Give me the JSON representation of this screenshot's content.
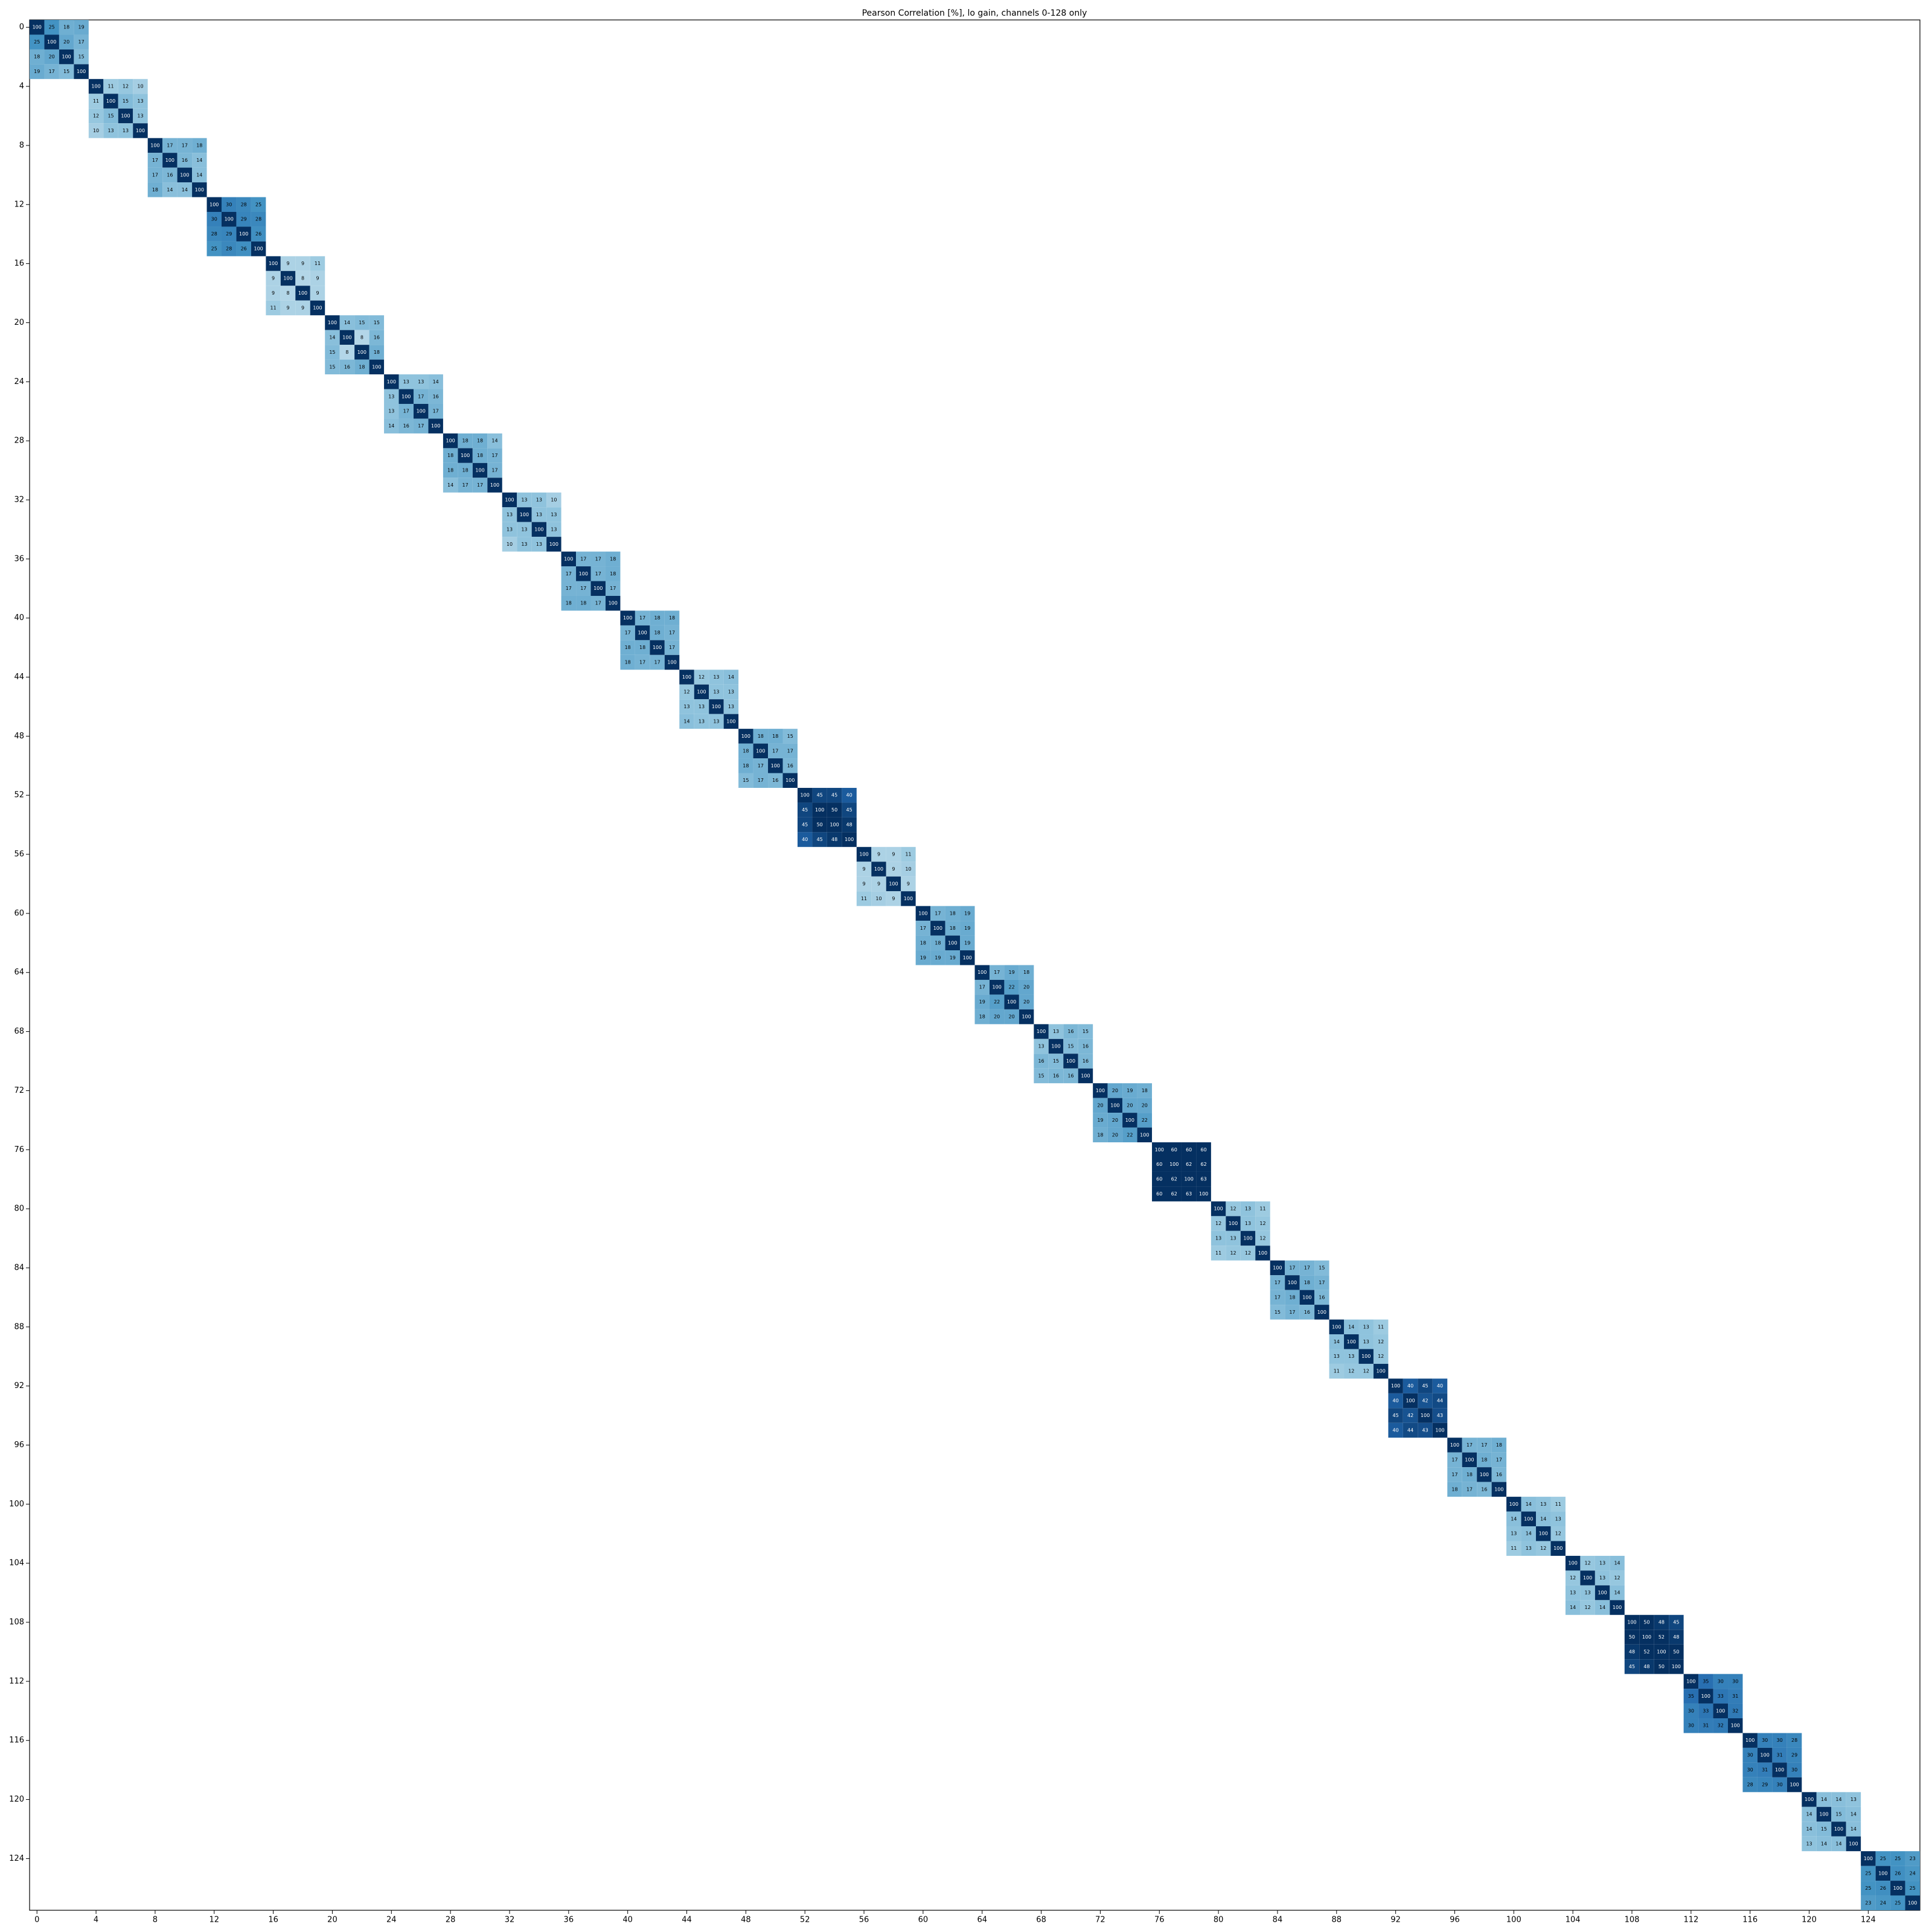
{
  "chart_data": {
    "type": "heatmap",
    "title": "Pearson Correlation [%], lo gain, channels 0-128 only",
    "xlim": [
      -0.5,
      127.5
    ],
    "ylim": [
      127.5,
      -0.5
    ],
    "xticks": [
      0,
      4,
      8,
      12,
      16,
      20,
      24,
      28,
      32,
      36,
      40,
      44,
      48,
      52,
      56,
      60,
      64,
      68,
      72,
      76,
      80,
      84,
      88,
      92,
      96,
      100,
      104,
      108,
      112,
      116,
      120,
      124
    ],
    "yticks": [
      0,
      4,
      8,
      12,
      16,
      20,
      24,
      28,
      32,
      36,
      40,
      44,
      48,
      52,
      56,
      60,
      64,
      68,
      72,
      76,
      80,
      84,
      88,
      92,
      96,
      100,
      104,
      108,
      112,
      116,
      120,
      124
    ],
    "zlim": [
      -50,
      50
    ],
    "grid": false,
    "blocks": [
      {
        "start": 0,
        "values": [
          [
            100,
            25,
            18,
            19
          ],
          [
            25,
            100,
            20,
            17
          ],
          [
            18,
            20,
            100,
            15
          ],
          [
            19,
            17,
            15,
            100
          ]
        ]
      },
      {
        "start": 4,
        "values": [
          [
            100,
            11,
            12,
            10
          ],
          [
            11,
            100,
            15,
            13
          ],
          [
            12,
            15,
            100,
            13
          ],
          [
            10,
            13,
            13,
            100
          ]
        ]
      },
      {
        "start": 8,
        "values": [
          [
            100,
            17,
            17,
            18
          ],
          [
            17,
            100,
            16,
            14
          ],
          [
            17,
            16,
            100,
            14
          ],
          [
            18,
            14,
            14,
            100
          ]
        ]
      },
      {
        "start": 12,
        "values": [
          [
            100,
            30,
            28,
            25
          ],
          [
            30,
            100,
            29,
            28
          ],
          [
            28,
            29,
            100,
            26
          ],
          [
            25,
            28,
            26,
            100
          ]
        ]
      },
      {
        "start": 16,
        "values": [
          [
            100,
            9,
            9,
            11
          ],
          [
            9,
            100,
            8,
            9
          ],
          [
            9,
            8,
            100,
            9
          ],
          [
            11,
            9,
            9,
            100
          ]
        ]
      },
      {
        "start": 20,
        "values": [
          [
            100,
            14,
            15,
            15
          ],
          [
            14,
            100,
            8,
            16
          ],
          [
            15,
            8,
            100,
            18
          ],
          [
            15,
            16,
            18,
            100
          ]
        ]
      },
      {
        "start": 24,
        "values": [
          [
            100,
            13,
            13,
            14
          ],
          [
            13,
            100,
            17,
            16
          ],
          [
            13,
            17,
            100,
            17
          ],
          [
            14,
            16,
            17,
            100
          ]
        ]
      },
      {
        "start": 28,
        "values": [
          [
            100,
            18,
            18,
            14
          ],
          [
            18,
            100,
            18,
            17
          ],
          [
            18,
            18,
            100,
            17
          ],
          [
            14,
            17,
            17,
            100
          ]
        ]
      },
      {
        "start": 32,
        "values": [
          [
            100,
            13,
            13,
            10
          ],
          [
            13,
            100,
            13,
            13
          ],
          [
            13,
            13,
            100,
            13
          ],
          [
            10,
            13,
            13,
            100
          ]
        ]
      },
      {
        "start": 36,
        "values": [
          [
            100,
            17,
            17,
            18
          ],
          [
            17,
            100,
            17,
            18
          ],
          [
            17,
            17,
            100,
            17
          ],
          [
            18,
            18,
            17,
            100
          ]
        ]
      },
      {
        "start": 40,
        "values": [
          [
            100,
            17,
            18,
            18
          ],
          [
            17,
            100,
            18,
            17
          ],
          [
            18,
            18,
            100,
            17
          ],
          [
            18,
            17,
            17,
            100
          ]
        ]
      },
      {
        "start": 44,
        "values": [
          [
            100,
            12,
            13,
            14
          ],
          [
            12,
            100,
            13,
            13
          ],
          [
            13,
            13,
            100,
            13
          ],
          [
            14,
            13,
            13,
            100
          ]
        ]
      },
      {
        "start": 48,
        "values": [
          [
            100,
            18,
            18,
            15
          ],
          [
            18,
            100,
            17,
            17
          ],
          [
            18,
            17,
            100,
            16
          ],
          [
            15,
            17,
            16,
            100
          ]
        ]
      },
      {
        "start": 52,
        "values": [
          [
            100,
            45,
            45,
            40
          ],
          [
            45,
            100,
            50,
            45
          ],
          [
            45,
            50,
            100,
            48
          ],
          [
            40,
            45,
            48,
            100
          ]
        ]
      },
      {
        "start": 56,
        "values": [
          [
            100,
            9,
            9,
            11
          ],
          [
            9,
            100,
            9,
            10
          ],
          [
            9,
            9,
            100,
            9
          ],
          [
            11,
            10,
            9,
            100
          ]
        ]
      },
      {
        "start": 60,
        "values": [
          [
            100,
            17,
            18,
            19
          ],
          [
            17,
            100,
            18,
            19
          ],
          [
            18,
            18,
            100,
            19
          ],
          [
            19,
            19,
            19,
            100
          ]
        ]
      },
      {
        "start": 64,
        "values": [
          [
            100,
            17,
            19,
            18
          ],
          [
            17,
            100,
            22,
            20
          ],
          [
            19,
            22,
            100,
            20
          ],
          [
            18,
            20,
            20,
            100
          ]
        ]
      },
      {
        "start": 68,
        "values": [
          [
            100,
            13,
            16,
            15
          ],
          [
            13,
            100,
            15,
            16
          ],
          [
            16,
            15,
            100,
            16
          ],
          [
            15,
            16,
            16,
            100
          ]
        ]
      },
      {
        "start": 72,
        "values": [
          [
            100,
            20,
            19,
            18
          ],
          [
            20,
            100,
            20,
            20
          ],
          [
            19,
            20,
            100,
            22
          ],
          [
            18,
            20,
            22,
            100
          ]
        ]
      },
      {
        "start": 76,
        "values": [
          [
            100,
            60,
            60,
            60
          ],
          [
            60,
            100,
            62,
            62
          ],
          [
            60,
            62,
            100,
            63
          ],
          [
            60,
            62,
            63,
            100
          ]
        ]
      },
      {
        "start": 80,
        "values": [
          [
            100,
            12,
            13,
            11
          ],
          [
            12,
            100,
            13,
            12
          ],
          [
            13,
            13,
            100,
            12
          ],
          [
            11,
            12,
            12,
            100
          ]
        ]
      },
      {
        "start": 84,
        "values": [
          [
            100,
            17,
            17,
            15
          ],
          [
            17,
            100,
            18,
            17
          ],
          [
            17,
            18,
            100,
            16
          ],
          [
            15,
            17,
            16,
            100
          ]
        ]
      },
      {
        "start": 88,
        "values": [
          [
            100,
            14,
            13,
            11
          ],
          [
            14,
            100,
            13,
            12
          ],
          [
            13,
            13,
            100,
            12
          ],
          [
            11,
            12,
            12,
            100
          ]
        ]
      },
      {
        "start": 92,
        "values": [
          [
            100,
            40,
            45,
            40
          ],
          [
            40,
            100,
            42,
            44
          ],
          [
            45,
            42,
            100,
            43
          ],
          [
            40,
            44,
            43,
            100
          ]
        ]
      },
      {
        "start": 96,
        "values": [
          [
            100,
            17,
            17,
            18
          ],
          [
            17,
            100,
            18,
            17
          ],
          [
            17,
            18,
            100,
            16
          ],
          [
            18,
            17,
            16,
            100
          ]
        ]
      },
      {
        "start": 100,
        "values": [
          [
            100,
            14,
            13,
            11
          ],
          [
            14,
            100,
            14,
            13
          ],
          [
            13,
            14,
            100,
            12
          ],
          [
            11,
            13,
            12,
            100
          ]
        ]
      },
      {
        "start": 104,
        "values": [
          [
            100,
            12,
            13,
            14
          ],
          [
            12,
            100,
            13,
            12
          ],
          [
            13,
            13,
            100,
            14
          ],
          [
            14,
            12,
            14,
            100
          ]
        ]
      },
      {
        "start": 108,
        "values": [
          [
            100,
            50,
            48,
            45
          ],
          [
            50,
            100,
            52,
            48
          ],
          [
            48,
            52,
            100,
            50
          ],
          [
            45,
            48,
            50,
            100
          ]
        ]
      },
      {
        "start": 112,
        "values": [
          [
            100,
            35,
            30,
            30
          ],
          [
            35,
            100,
            33,
            31
          ],
          [
            30,
            33,
            100,
            32
          ],
          [
            30,
            31,
            32,
            100
          ]
        ]
      },
      {
        "start": 116,
        "values": [
          [
            100,
            30,
            30,
            28
          ],
          [
            30,
            100,
            31,
            29
          ],
          [
            30,
            31,
            100,
            30
          ],
          [
            28,
            29,
            30,
            100
          ]
        ]
      },
      {
        "start": 120,
        "values": [
          [
            100,
            14,
            14,
            13
          ],
          [
            14,
            100,
            15,
            14
          ],
          [
            14,
            15,
            100,
            14
          ],
          [
            13,
            14,
            14,
            100
          ]
        ]
      },
      {
        "start": 124,
        "values": [
          [
            100,
            25,
            25,
            23
          ],
          [
            25,
            100,
            26,
            24
          ],
          [
            25,
            26,
            100,
            25
          ],
          [
            23,
            24,
            25,
            100
          ]
        ]
      }
    ]
  }
}
